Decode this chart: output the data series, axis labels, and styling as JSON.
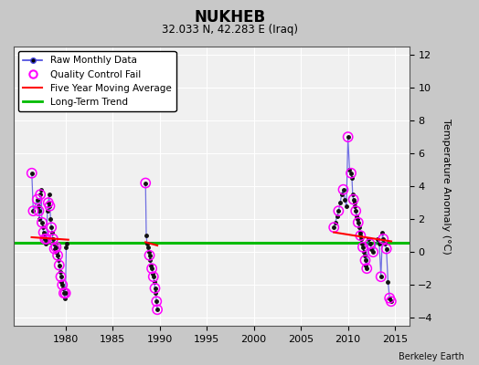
{
  "title": "NUKHEB",
  "subtitle": "32.033 N, 42.283 E (Iraq)",
  "ylabel": "Temperature Anomaly (°C)",
  "credit": "Berkeley Earth",
  "ylim": [
    -4.5,
    12.5
  ],
  "xlim": [
    1974.5,
    2016.5
  ],
  "yticks": [
    -4,
    -2,
    0,
    2,
    4,
    6,
    8,
    10,
    12
  ],
  "xticks": [
    1980,
    1985,
    1990,
    1995,
    2000,
    2005,
    2010,
    2015
  ],
  "long_term_trend_y": 0.55,
  "fig_facecolor": "#c8c8c8",
  "ax_facecolor": "#f0f0f0",
  "raw_line_color": "#4444dd",
  "raw_marker_color": "#111111",
  "qc_fail_color": "#ff00ff",
  "five_year_ma_color": "#ff0000",
  "long_term_trend_color": "#00bb00",
  "clusters": [
    {
      "data": [
        [
          1976.42,
          4.8
        ],
        [
          1976.58,
          2.5
        ],
        [
          1977.0,
          3.2
        ],
        [
          1977.08,
          2.8
        ],
        [
          1977.17,
          2.5
        ],
        [
          1977.25,
          2.0
        ],
        [
          1977.33,
          3.5
        ],
        [
          1977.42,
          3.8
        ],
        [
          1977.5,
          1.8
        ],
        [
          1977.58,
          1.5
        ],
        [
          1977.67,
          1.2
        ],
        [
          1977.75,
          1.0
        ],
        [
          1977.83,
          0.8
        ],
        [
          1977.92,
          0.5
        ],
        [
          1978.0,
          0.8
        ],
        [
          1978.08,
          2.5
        ],
        [
          1978.17,
          3.0
        ],
        [
          1978.25,
          3.5
        ],
        [
          1978.33,
          2.8
        ],
        [
          1978.42,
          2.0
        ],
        [
          1978.5,
          1.5
        ],
        [
          1978.58,
          1.2
        ],
        [
          1978.67,
          0.8
        ],
        [
          1978.75,
          0.5
        ],
        [
          1978.83,
          0.2
        ],
        [
          1978.92,
          0.0
        ],
        [
          1979.0,
          0.3
        ],
        [
          1979.08,
          0.0
        ],
        [
          1979.17,
          -0.2
        ],
        [
          1979.25,
          -0.5
        ],
        [
          1979.33,
          -0.8
        ],
        [
          1979.42,
          -1.2
        ],
        [
          1979.5,
          -1.5
        ],
        [
          1979.58,
          -1.8
        ],
        [
          1979.67,
          -2.0
        ],
        [
          1979.75,
          -2.2
        ],
        [
          1979.83,
          -2.5
        ],
        [
          1979.92,
          -2.8
        ],
        [
          1980.0,
          -2.5
        ],
        [
          1980.08,
          0.3
        ],
        [
          1980.17,
          0.5
        ]
      ],
      "qc": [
        [
          1976.42,
          4.8
        ],
        [
          1976.58,
          2.5
        ],
        [
          1977.0,
          3.2
        ],
        [
          1977.17,
          2.5
        ],
        [
          1977.33,
          3.5
        ],
        [
          1977.5,
          1.8
        ],
        [
          1977.67,
          1.2
        ],
        [
          1977.83,
          0.8
        ],
        [
          1978.0,
          0.8
        ],
        [
          1978.17,
          3.0
        ],
        [
          1978.33,
          2.8
        ],
        [
          1978.5,
          1.5
        ],
        [
          1978.67,
          0.8
        ],
        [
          1978.83,
          0.2
        ],
        [
          1979.0,
          0.3
        ],
        [
          1979.17,
          -0.2
        ],
        [
          1979.33,
          -0.8
        ],
        [
          1979.5,
          -1.5
        ],
        [
          1979.67,
          -2.0
        ],
        [
          1979.83,
          -2.5
        ],
        [
          1980.0,
          -2.5
        ]
      ]
    },
    {
      "data": [
        [
          1988.5,
          4.2
        ],
        [
          1988.58,
          1.0
        ],
        [
          1988.67,
          0.5
        ],
        [
          1988.75,
          0.3
        ],
        [
          1988.83,
          0.0
        ],
        [
          1988.92,
          -0.2
        ],
        [
          1989.0,
          -0.5
        ],
        [
          1989.08,
          -0.8
        ],
        [
          1989.17,
          -1.0
        ],
        [
          1989.25,
          -1.3
        ],
        [
          1989.33,
          -1.5
        ],
        [
          1989.42,
          -1.8
        ],
        [
          1989.5,
          -2.2
        ],
        [
          1989.58,
          -2.5
        ],
        [
          1989.67,
          -3.0
        ],
        [
          1989.75,
          -3.5
        ]
      ],
      "qc": [
        [
          1988.5,
          4.2
        ],
        [
          1988.92,
          -0.2
        ],
        [
          1989.17,
          -1.0
        ],
        [
          1989.33,
          -1.5
        ],
        [
          1989.5,
          -2.2
        ],
        [
          1989.67,
          -3.0
        ],
        [
          1989.75,
          -3.5
        ]
      ]
    },
    {
      "data": [
        [
          2008.5,
          1.5
        ],
        [
          2008.67,
          1.8
        ],
        [
          2008.83,
          2.2
        ],
        [
          2009.0,
          2.5
        ],
        [
          2009.17,
          3.0
        ],
        [
          2009.33,
          3.5
        ],
        [
          2009.5,
          3.8
        ],
        [
          2009.67,
          3.2
        ],
        [
          2009.83,
          2.8
        ],
        [
          2010.0,
          7.0
        ],
        [
          2010.17,
          5.0
        ],
        [
          2010.33,
          4.8
        ],
        [
          2010.42,
          4.5
        ],
        [
          2010.5,
          3.5
        ],
        [
          2010.58,
          3.2
        ],
        [
          2010.67,
          3.0
        ],
        [
          2010.75,
          2.8
        ],
        [
          2010.83,
          2.5
        ],
        [
          2010.92,
          2.2
        ],
        [
          2011.0,
          2.0
        ],
        [
          2011.08,
          1.8
        ],
        [
          2011.17,
          1.5
        ],
        [
          2011.25,
          1.2
        ],
        [
          2011.33,
          1.0
        ],
        [
          2011.42,
          0.8
        ],
        [
          2011.5,
          0.5
        ],
        [
          2011.58,
          0.3
        ],
        [
          2011.67,
          0.0
        ],
        [
          2011.75,
          -0.2
        ],
        [
          2011.83,
          -0.5
        ],
        [
          2011.92,
          -0.8
        ],
        [
          2012.0,
          -1.0
        ],
        [
          2012.17,
          0.8
        ],
        [
          2012.33,
          0.5
        ],
        [
          2012.5,
          0.2
        ],
        [
          2012.67,
          0.0
        ],
        [
          2013.17,
          0.8
        ],
        [
          2013.33,
          0.5
        ],
        [
          2013.5,
          -1.5
        ],
        [
          2013.67,
          1.2
        ],
        [
          2013.75,
          0.8
        ],
        [
          2013.92,
          0.5
        ],
        [
          2014.08,
          0.2
        ],
        [
          2014.25,
          -1.8
        ],
        [
          2014.42,
          -2.8
        ],
        [
          2014.58,
          -3.0
        ]
      ],
      "qc": [
        [
          2008.5,
          1.5
        ],
        [
          2009.0,
          2.5
        ],
        [
          2009.5,
          3.8
        ],
        [
          2010.0,
          7.0
        ],
        [
          2010.33,
          4.8
        ],
        [
          2010.58,
          3.2
        ],
        [
          2010.83,
          2.5
        ],
        [
          2011.08,
          1.8
        ],
        [
          2011.33,
          1.0
        ],
        [
          2011.58,
          0.3
        ],
        [
          2011.83,
          -0.5
        ],
        [
          2012.0,
          -1.0
        ],
        [
          2012.33,
          0.5
        ],
        [
          2012.67,
          0.0
        ],
        [
          2013.5,
          -1.5
        ],
        [
          2013.75,
          0.8
        ],
        [
          2014.08,
          0.2
        ],
        [
          2014.42,
          -2.8
        ],
        [
          2014.58,
          -3.0
        ]
      ]
    }
  ]
}
